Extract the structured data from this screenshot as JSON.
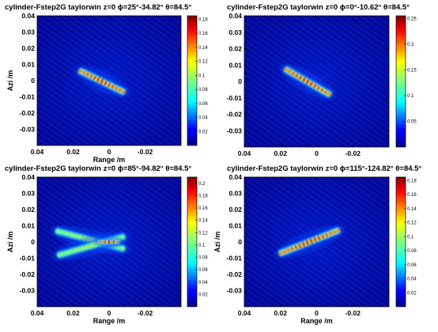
{
  "chart_data": [
    {
      "type": "heatmap",
      "title": "cylinder-Fstep2G  taylorwin  z=0  ϕ=25°-34.82°  θ=84.5°",
      "xlabel": "Range /m",
      "ylabel": "Azi /m",
      "xlim": [
        0.04,
        -0.04
      ],
      "ylim": [
        -0.04,
        0.04
      ],
      "xticks": [
        "0.04",
        "0.02",
        "0",
        "-0.02"
      ],
      "yticks": [
        "0.04",
        "0.03",
        "0.02",
        "0.01",
        "0",
        "-0.01",
        "-0.02",
        "-0.03"
      ],
      "colorbar": {
        "min": 0,
        "max": 0.185,
        "ticks": [
          "0.18",
          "0.16",
          "0.14",
          "0.12",
          "0.1",
          "0.08",
          "0.06",
          "0.04",
          "0.02"
        ]
      },
      "features": [
        {
          "x_start": 0.017,
          "y_start": 0.0065,
          "x_end": -0.009,
          "y_end": -0.0075,
          "peak": 0.18
        }
      ]
    },
    {
      "type": "heatmap",
      "title": "cylinder-Fstep2G  taylorwin  z=0  ϕ=0°-10.62°  θ=84.5°",
      "xlabel": "",
      "ylabel": "",
      "xlim": [
        0.04,
        -0.04
      ],
      "ylim": [
        -0.04,
        0.04
      ],
      "xticks": [
        "0.04",
        "0.02",
        "0",
        "-0.02"
      ],
      "yticks": [
        "0.04",
        "0.03",
        "0.02",
        "0.01",
        "0",
        "-0.01",
        "-0.02",
        "-0.03"
      ],
      "colorbar": {
        "min": 0,
        "max": 0.255,
        "ticks": [
          "0.25",
          "0.2",
          "0.15",
          "0.1",
          "0.05"
        ]
      },
      "features": [
        {
          "x_start": 0.018,
          "y_start": 0.008,
          "x_end": -0.008,
          "y_end": -0.0085,
          "peak": 0.25
        }
      ]
    },
    {
      "type": "heatmap",
      "title": "cylinder-Fstep2G  taylorwin  z=0  ϕ=85°-94.82°  θ=84.5°",
      "xlabel": "Range /m",
      "ylabel": "Azi /m",
      "xlim": [
        0.04,
        -0.04
      ],
      "ylim": [
        -0.04,
        0.04
      ],
      "xticks": [
        "0.04",
        "0.02",
        "0",
        "-0.02"
      ],
      "yticks": [
        "0.04",
        "0.03",
        "0.02",
        "0.01",
        "0",
        "-0.01",
        "-0.02",
        "-0.03"
      ],
      "colorbar": {
        "min": 0,
        "max": 0.21,
        "ticks": [
          "0.2",
          "0.18",
          "0.16",
          "0.14",
          "0.12",
          "0.1",
          "0.08",
          "0.06",
          "0.04",
          "0.02"
        ]
      },
      "features": [
        {
          "x_start": 0.03,
          "y_start": 0.007,
          "x_end": -0.009,
          "y_end": -0.0045,
          "peak": 0.12
        },
        {
          "x_start": 0.029,
          "y_start": -0.0085,
          "x_end": -0.009,
          "y_end": 0.0035,
          "peak": 0.12
        },
        {
          "x_start": 0.006,
          "y_start": 0.0,
          "x_end": -0.006,
          "y_end": 0.0,
          "peak": 0.21
        }
      ]
    },
    {
      "type": "heatmap",
      "title": "cylinder-Fstep2G  taylorwin  z=0  ϕ=115°-124.82°  θ=84.5°",
      "xlabel": "Range /m",
      "ylabel": "Azi /m",
      "xlim": [
        0.04,
        -0.04
      ],
      "ylim": [
        -0.04,
        0.04
      ],
      "xticks": [
        "0.04",
        "0.02",
        "0",
        "-0.02"
      ],
      "yticks": [
        "0.04",
        "0.03",
        "0.02",
        "0.01",
        "0",
        "-0.01",
        "-0.02",
        "-0.03"
      ],
      "colorbar": {
        "min": 0,
        "max": 0.185,
        "ticks": [
          "0.18",
          "0.16",
          "0.14",
          "0.12",
          "0.1",
          "0.08",
          "0.06",
          "0.04",
          "0.02"
        ]
      },
      "features": [
        {
          "x_start": 0.021,
          "y_start": -0.0075,
          "x_end": -0.013,
          "y_end": 0.0075,
          "peak": 0.18
        }
      ]
    }
  ]
}
